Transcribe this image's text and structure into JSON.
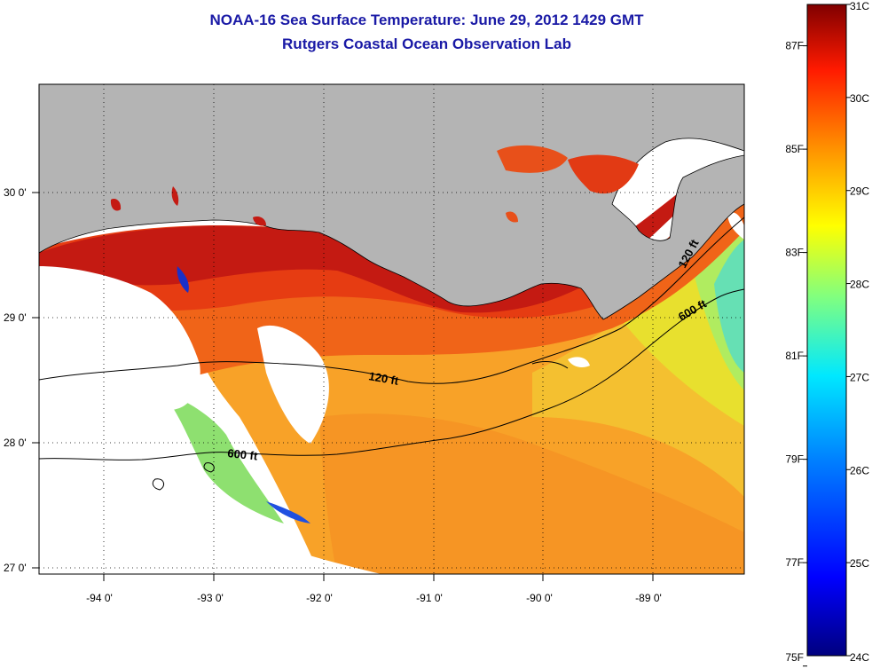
{
  "title": "NOAA-16 Sea Surface Temperature:  June 29, 2012 1429 GMT",
  "subtitle": "Rutgers Coastal Ocean Observation Lab",
  "map": {
    "lon_labels": [
      "-94 0'",
      "-93 0'",
      "-92 0'",
      "-91 0'",
      "-90 0'",
      "-89 0'"
    ],
    "lat_labels": [
      "30 0'",
      "29 0'",
      "28 0'",
      "27 0'"
    ],
    "contours": [
      {
        "label": "120 ft"
      },
      {
        "label": "120 ft"
      },
      {
        "label": "600 ft"
      },
      {
        "label": "600 ft"
      }
    ],
    "colors": {
      "land": "#b4b4b4",
      "cloud": "#ffffff",
      "warm_near_shore": "#c81a10",
      "mid_shelf": "#f05a14",
      "offshore": "#f8a820",
      "east_offshore": "#e8e830",
      "cool_east": "#60e0b0"
    }
  },
  "colorbar": {
    "celsius_labels": [
      "31C",
      "30C",
      "29C",
      "28C",
      "27C",
      "26C",
      "25C",
      "24C"
    ],
    "fahrenheit_labels": [
      "87F",
      "85F",
      "83F",
      "81F",
      "79F",
      "77F",
      "75F"
    ],
    "celsius_values": [
      31,
      30,
      29,
      28,
      27,
      26,
      25,
      24
    ],
    "fahrenheit_values": [
      87,
      85,
      83,
      81,
      79,
      77,
      75
    ]
  }
}
